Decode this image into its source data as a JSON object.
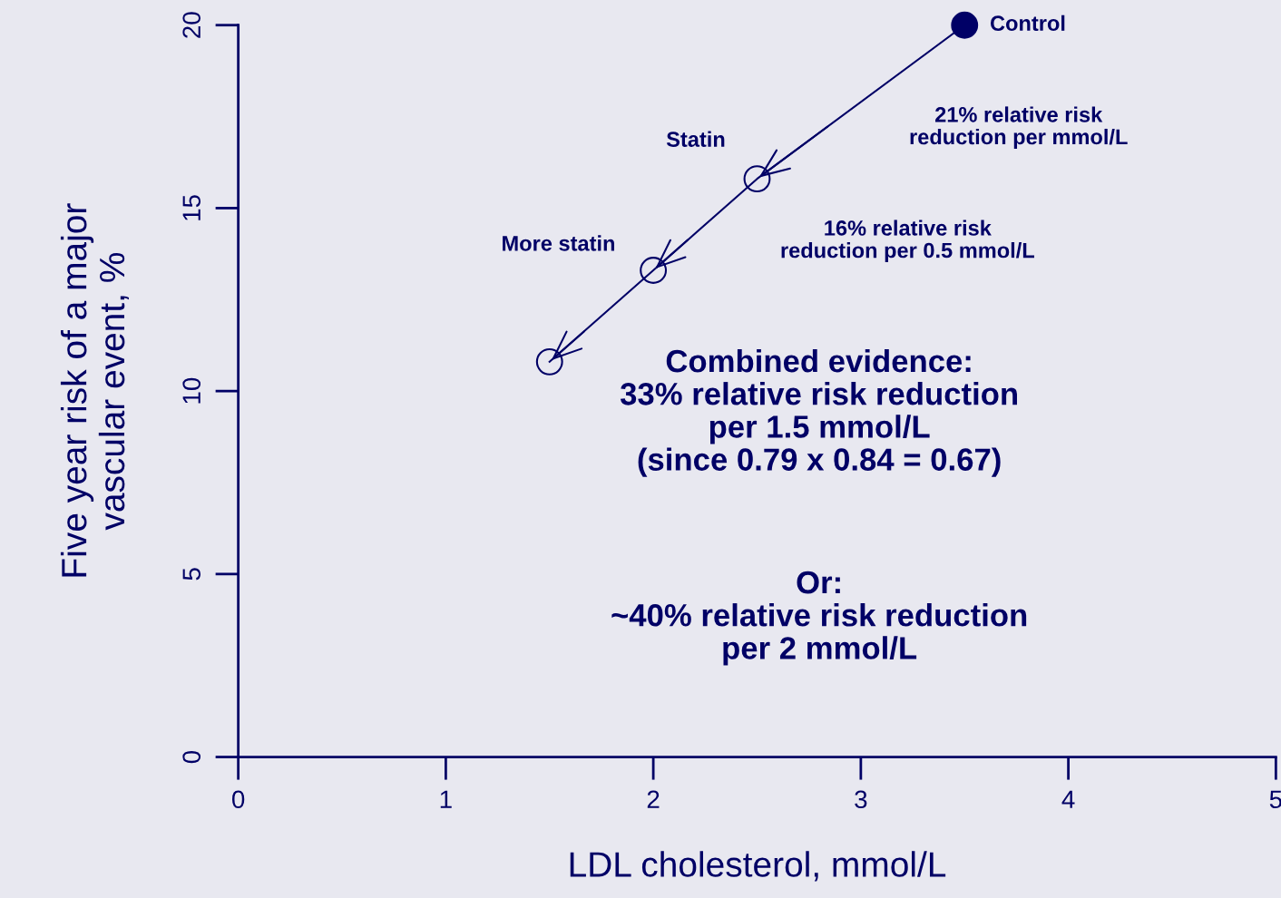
{
  "chart_data": {
    "type": "line",
    "xlabel": "LDL cholesterol, mmol/L",
    "ylabel": "Five year risk of a major\nvascular event, %",
    "x": [
      3.5,
      2.5,
      2.0,
      1.5
    ],
    "series": [
      {
        "color": "#000066",
        "values": [
          20,
          15.8,
          13.3,
          10.8
        ]
      }
    ],
    "marker": "circle",
    "xlim": [
      0,
      5
    ],
    "xticks": [
      0,
      1,
      2,
      3,
      4,
      5
    ],
    "ylim": [
      0,
      20
    ],
    "yticks": [
      0,
      5,
      10,
      15,
      20
    ],
    "grid": false,
    "legend": false,
    "annotations": [
      {
        "text": "Control",
        "x": 3.5,
        "y": 20
      },
      {
        "text": "Statin",
        "x": 2.5,
        "y": 15.8
      },
      {
        "text": "More statin",
        "x": 2.0,
        "y": 13.3
      },
      "21% relative risk\nreduction per mmol/L",
      "16% relative risk\nreduction per 0.5 mmol/L",
      "Combined evidence:\n33% relative risk reduction\nper 1.5 mmol/L\n(since 0.79 x 0.84 = 0.67)",
      "Or:\n~40% relative risk reduction\nper 2 mmol/L"
    ]
  }
}
